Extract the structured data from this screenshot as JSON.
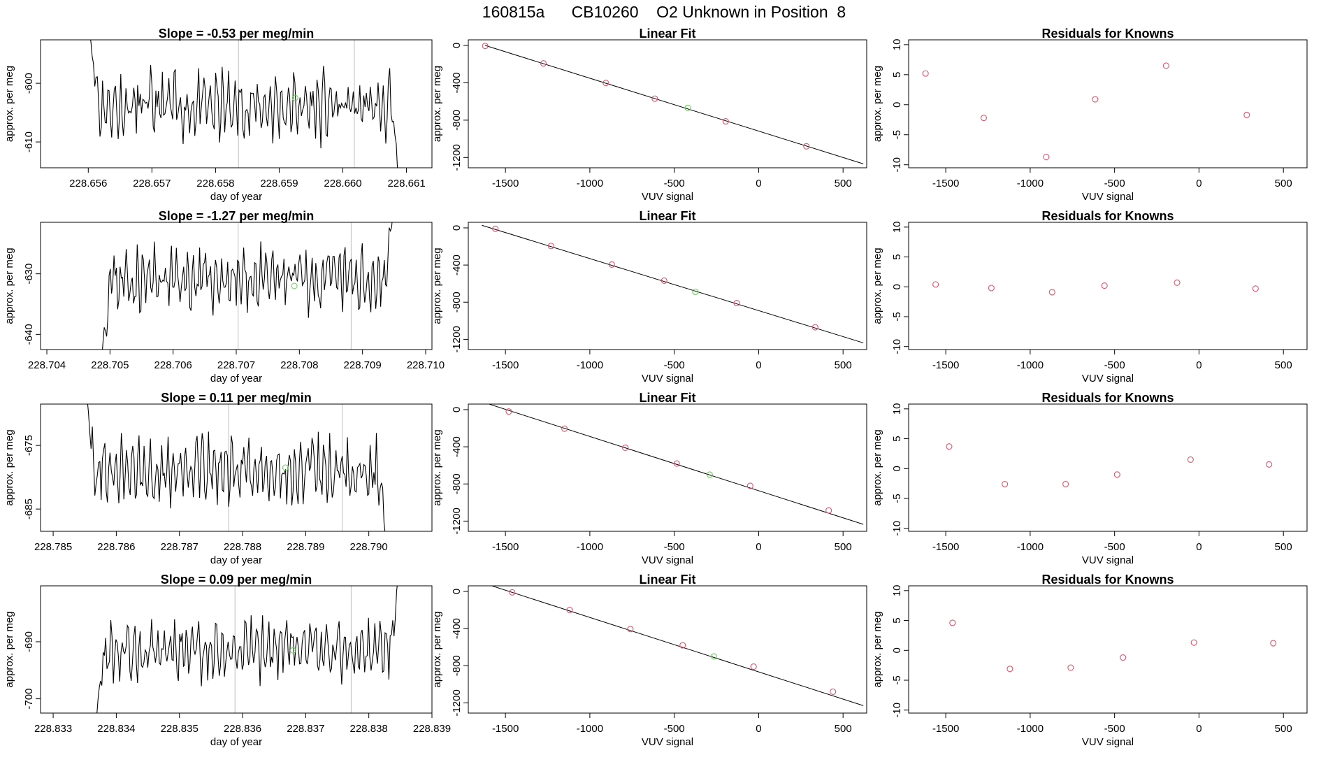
{
  "figure_title": "160815a      CB10260    O2 Unknown in Position  8",
  "labels": {
    "ts_xlabel": "day of year",
    "ylabel": "approx. per meg",
    "fit_title": "Linear Fit",
    "resid_title": "Residuals for Knowns",
    "fit_xlabel": "VUV signal"
  },
  "colors": {
    "line": "#000000",
    "known": "#DF536B",
    "unknown": "#61D04F",
    "marker": "#BEBEBE"
  },
  "chart_data": [
    {
      "type": "line",
      "panel": "timeseries",
      "row": 1,
      "title": "Slope =  -0.53  per meg/min",
      "xlabel": "day of year",
      "ylabel": "approx. per meg",
      "xlim": [
        228.65525,
        228.6614
      ],
      "ylim": [
        -614.4,
        -592.6
      ],
      "xticks": [
        228.656,
        228.657,
        228.658,
        228.659,
        228.66,
        228.661
      ],
      "xtick_labels": [
        "228.656",
        "228.657",
        "228.658",
        "228.659",
        "228.660",
        "228.661"
      ],
      "yticks": [
        -600,
        -610
      ],
      "ytick_labels": [
        "-600",
        "-610"
      ],
      "x_start": 228.656,
      "x_end": 228.6609,
      "y_level": -604.0,
      "noise": 4.5,
      "seed": 11,
      "start_y": -590,
      "end_y": -618,
      "vlines": [
        228.65836,
        228.66018
      ],
      "unknown_point": {
        "x": 228.65925,
        "y": -602.5
      }
    },
    {
      "type": "line",
      "panel": "timeseries",
      "row": 2,
      "title": "Slope =  -1.27  per meg/min",
      "xlabel": "day of year",
      "ylabel": "approx. per meg",
      "xlim": [
        228.7039,
        228.7101
      ],
      "ylim": [
        -642.5,
        -621.5
      ],
      "xticks": [
        228.704,
        228.705,
        228.706,
        228.707,
        228.708,
        228.709,
        228.71
      ],
      "xtick_labels": [
        "228.704",
        "228.705",
        "228.706",
        "228.707",
        "228.708",
        "228.709",
        "228.710"
      ],
      "yticks": [
        -630,
        -640
      ],
      "ytick_labels": [
        "-630",
        "-640"
      ],
      "x_start": 228.70485,
      "x_end": 228.7095,
      "y_level": -631.0,
      "noise": 4.0,
      "seed": 23,
      "start_y": -645,
      "end_y": -618,
      "vlines": [
        228.70703,
        228.70882
      ],
      "unknown_point": {
        "x": 228.70792,
        "y": -632.0
      }
    },
    {
      "type": "line",
      "panel": "timeseries",
      "row": 3,
      "title": "Slope =  0.11  per meg/min",
      "xlabel": "day of year",
      "ylabel": "approx. per meg",
      "xlim": [
        228.7848,
        228.791
      ],
      "ylim": [
        -688.5,
        -668.5
      ],
      "xticks": [
        228.785,
        228.786,
        228.787,
        228.788,
        228.789,
        228.79
      ],
      "xtick_labels": [
        "228.785",
        "228.786",
        "228.787",
        "228.788",
        "228.789",
        "228.790"
      ],
      "yticks": [
        -675,
        -685
      ],
      "ytick_labels": [
        "-675",
        "-685"
      ],
      "x_start": 228.7855,
      "x_end": 228.7903,
      "y_level": -679.0,
      "noise": 4.0,
      "seed": 37,
      "start_y": -666,
      "end_y": -692,
      "vlines": [
        228.78778,
        228.78958
      ],
      "unknown_point": {
        "x": 228.78868,
        "y": -678.5
      }
    },
    {
      "type": "line",
      "panel": "timeseries",
      "row": 4,
      "title": "Slope =  0.09  per meg/min",
      "xlabel": "day of year",
      "ylabel": "approx. per meg",
      "xlim": [
        228.8328,
        228.839
      ],
      "ylim": [
        -702.5,
        -680.2
      ],
      "xticks": [
        228.833,
        228.834,
        228.835,
        228.836,
        228.837,
        228.838,
        228.839
      ],
      "xtick_labels": [
        "228.833",
        "228.834",
        "228.835",
        "228.836",
        "228.837",
        "228.838",
        "228.839"
      ],
      "yticks": [
        -690,
        -700
      ],
      "ytick_labels": [
        "-690",
        "-700"
      ],
      "x_start": 228.83365,
      "x_end": 228.8385,
      "y_level": -691.5,
      "noise": 4.0,
      "seed": 53,
      "start_y": -705,
      "end_y": -676,
      "vlines": [
        228.83588,
        228.83772
      ],
      "unknown_point": {
        "x": 228.8368,
        "y": -691.5
      }
    },
    {
      "type": "scatter",
      "panel": "fit",
      "row": 1,
      "title": "Linear Fit",
      "xlabel": "VUV signal",
      "ylabel": "approx. per meg",
      "xlim": [
        -1720,
        640
      ],
      "ylim": [
        -1310,
        60
      ],
      "xticks": [
        -1500,
        -1000,
        -500,
        0,
        500
      ],
      "xtick_labels": [
        "-1500",
        "-1000",
        "-500",
        "0",
        "500"
      ],
      "yticks": [
        0,
        -400,
        -800,
        -1200
      ],
      "ytick_labels": [
        "0",
        "-400",
        "-800",
        "-1200"
      ],
      "fit_line": {
        "x": [
          -1620,
          620
        ],
        "y": [
          0,
          -1268
        ]
      },
      "knowns": [
        {
          "x": -1620,
          "y": -5
        },
        {
          "x": -1275,
          "y": -192
        },
        {
          "x": -905,
          "y": -402
        },
        {
          "x": -615,
          "y": -570
        },
        {
          "x": -195,
          "y": -813
        },
        {
          "x": 283,
          "y": -1080
        }
      ],
      "unknown": {
        "x": -420,
        "y": -668
      }
    },
    {
      "type": "scatter",
      "panel": "fit",
      "row": 2,
      "title": "Linear Fit",
      "xlabel": "VUV signal",
      "ylabel": "approx. per meg",
      "xlim": [
        -1720,
        640
      ],
      "ylim": [
        -1310,
        60
      ],
      "xticks": [
        -1500,
        -1000,
        -500,
        0,
        500
      ],
      "xtick_labels": [
        "-1500",
        "-1000",
        "-500",
        "0",
        "500"
      ],
      "yticks": [
        0,
        -400,
        -800,
        -1200
      ],
      "ytick_labels": [
        "0",
        "-400",
        "-800",
        "-1200"
      ],
      "fit_line": {
        "x": [
          -1640,
          620
        ],
        "y": [
          28,
          -1238
        ]
      },
      "knowns": [
        {
          "x": -1560,
          "y": -10
        },
        {
          "x": -1230,
          "y": -195
        },
        {
          "x": -870,
          "y": -395
        },
        {
          "x": -560,
          "y": -568
        },
        {
          "x": -130,
          "y": -810
        },
        {
          "x": 335,
          "y": -1070
        }
      ],
      "unknown": {
        "x": -375,
        "y": -688
      }
    },
    {
      "type": "scatter",
      "panel": "fit",
      "row": 3,
      "title": "Linear Fit",
      "xlabel": "VUV signal",
      "ylabel": "approx. per meg",
      "xlim": [
        -1720,
        640
      ],
      "ylim": [
        -1310,
        60
      ],
      "xticks": [
        -1500,
        -1000,
        -500,
        0,
        500
      ],
      "xtick_labels": [
        "-1500",
        "-1000",
        "-500",
        "0",
        "500"
      ],
      "yticks": [
        0,
        -400,
        -800,
        -1200
      ],
      "ytick_labels": [
        "0",
        "-400",
        "-800",
        "-1200"
      ],
      "fit_line": {
        "x": [
          -1640,
          620
        ],
        "y": [
          85,
          -1235
        ]
      },
      "knowns": [
        {
          "x": -1480,
          "y": -20
        },
        {
          "x": -1150,
          "y": -205
        },
        {
          "x": -790,
          "y": -410
        },
        {
          "x": -485,
          "y": -580
        },
        {
          "x": -50,
          "y": -820
        },
        {
          "x": 415,
          "y": -1085
        }
      ],
      "unknown": {
        "x": -290,
        "y": -700
      }
    },
    {
      "type": "scatter",
      "panel": "fit",
      "row": 4,
      "title": "Linear Fit",
      "xlabel": "VUV signal",
      "ylabel": "approx. per meg",
      "xlim": [
        -1720,
        640
      ],
      "ylim": [
        -1310,
        60
      ],
      "xticks": [
        -1500,
        -1000,
        -500,
        0,
        500
      ],
      "xtick_labels": [
        "-1500",
        "-1000",
        "-500",
        "0",
        "500"
      ],
      "yticks": [
        0,
        -400,
        -800,
        -1200
      ],
      "ytick_labels": [
        "0",
        "-400",
        "-800",
        "-1200"
      ],
      "fit_line": {
        "x": [
          -1640,
          620
        ],
        "y": [
          95,
          -1230
        ]
      },
      "knowns": [
        {
          "x": -1460,
          "y": -10
        },
        {
          "x": -1120,
          "y": -200
        },
        {
          "x": -760,
          "y": -405
        },
        {
          "x": -450,
          "y": -580
        },
        {
          "x": -30,
          "y": -810
        },
        {
          "x": 440,
          "y": -1080
        }
      ],
      "unknown": {
        "x": -265,
        "y": -700
      }
    },
    {
      "type": "scatter",
      "panel": "residuals",
      "row": 1,
      "title": "Residuals for Knowns",
      "xlabel": "VUV signal",
      "ylabel": "approx. per meg",
      "xlim": [
        -1720,
        640
      ],
      "ylim": [
        -10.5,
        10.8
      ],
      "xticks": [
        -1500,
        -1000,
        -500,
        0,
        500
      ],
      "xtick_labels": [
        "-1500",
        "-1000",
        "-500",
        "0",
        "500"
      ],
      "yticks": [
        10,
        5,
        0,
        -5,
        -10
      ],
      "ytick_labels": [
        "10",
        "5",
        "0",
        "-5",
        "-10"
      ],
      "x": [
        -1620,
        -1275,
        -905,
        -615,
        -195,
        283
      ],
      "y": [
        5.2,
        -2.2,
        -8.7,
        0.9,
        6.5,
        -1.7
      ]
    },
    {
      "type": "scatter",
      "panel": "residuals",
      "row": 2,
      "title": "Residuals for Knowns",
      "xlabel": "VUV signal",
      "ylabel": "approx. per meg",
      "xlim": [
        -1720,
        640
      ],
      "ylim": [
        -10.5,
        10.8
      ],
      "xticks": [
        -1500,
        -1000,
        -500,
        0,
        500
      ],
      "xtick_labels": [
        "-1500",
        "-1000",
        "-500",
        "0",
        "500"
      ],
      "yticks": [
        10,
        5,
        0,
        -5,
        -10
      ],
      "ytick_labels": [
        "10",
        "5",
        "0",
        "-5",
        "-10"
      ],
      "x": [
        -1560,
        -1230,
        -870,
        -560,
        -130,
        335
      ],
      "y": [
        0.4,
        -0.2,
        -0.9,
        0.2,
        0.7,
        -0.3
      ]
    },
    {
      "type": "scatter",
      "panel": "residuals",
      "row": 3,
      "title": "Residuals for Knowns",
      "xlabel": "VUV signal",
      "ylabel": "approx. per meg",
      "xlim": [
        -1720,
        640
      ],
      "ylim": [
        -10.5,
        10.8
      ],
      "xticks": [
        -1500,
        -1000,
        -500,
        0,
        500
      ],
      "xtick_labels": [
        "-1500",
        "-1000",
        "-500",
        "0",
        "500"
      ],
      "yticks": [
        10,
        5,
        0,
        -5,
        -10
      ],
      "ytick_labels": [
        "10",
        "5",
        "0",
        "-5",
        "-10"
      ],
      "x": [
        -1480,
        -1150,
        -790,
        -485,
        -50,
        415
      ],
      "y": [
        3.7,
        -2.6,
        -2.6,
        -1.0,
        1.5,
        0.7
      ]
    },
    {
      "type": "scatter",
      "panel": "residuals",
      "row": 4,
      "title": "Residuals for Knowns",
      "xlabel": "VUV signal",
      "ylabel": "approx. per meg",
      "xlim": [
        -1720,
        640
      ],
      "ylim": [
        -10.5,
        10.8
      ],
      "xticks": [
        -1500,
        -1000,
        -500,
        0,
        500
      ],
      "xtick_labels": [
        "-1500",
        "-1000",
        "-500",
        "0",
        "500"
      ],
      "yticks": [
        10,
        5,
        0,
        -5,
        -10
      ],
      "ytick_labels": [
        "10",
        "5",
        "0",
        "-5",
        "-10"
      ],
      "x": [
        -1460,
        -1120,
        -760,
        -450,
        -30,
        440
      ],
      "y": [
        4.6,
        -3.1,
        -2.9,
        -1.2,
        1.3,
        1.2
      ]
    }
  ]
}
